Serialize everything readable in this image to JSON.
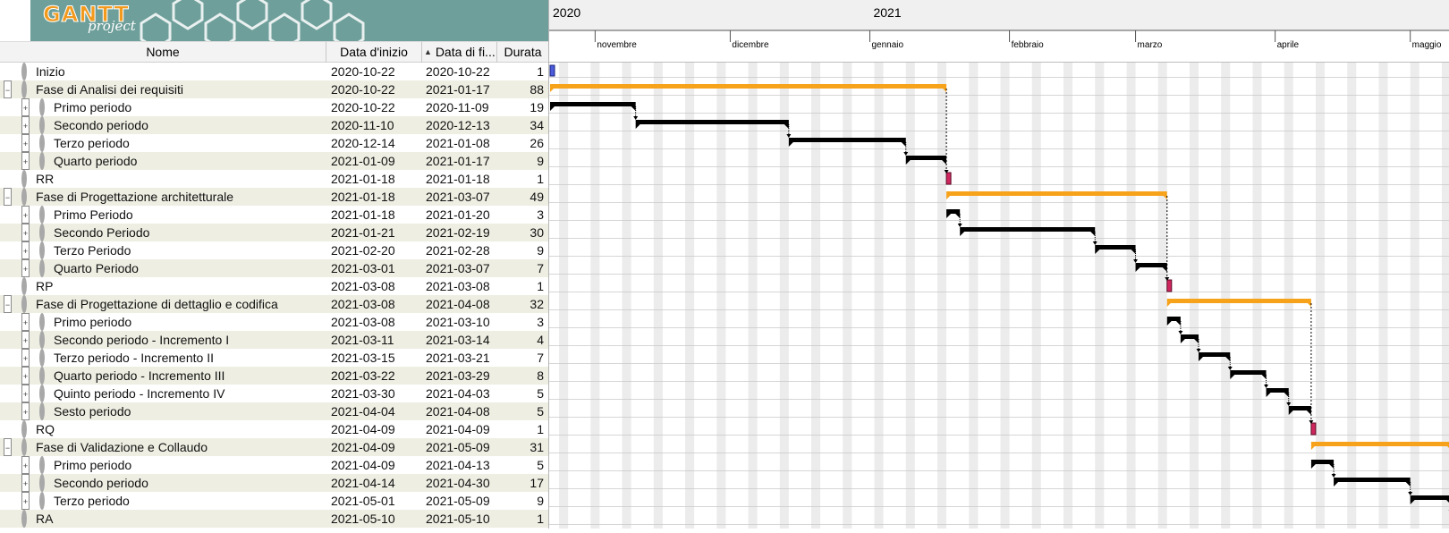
{
  "app": {
    "logo_main": "GANTT",
    "logo_sub": "project"
  },
  "columns": {
    "name": "Nome",
    "start": "Data d'inizio",
    "end": "Data di fi...",
    "duration": "Durata"
  },
  "colors": {
    "summary_bar": "#f7a21b",
    "task_bar": "#000000",
    "milestone": "#d0265e",
    "start_marker": "#4b5bd9",
    "weekend_shade": "#ececec",
    "row_alt": "#eeeee3",
    "logo_bg": "#6e9f9a",
    "logo_orange": "#f29a1e"
  },
  "timeline": {
    "years": [
      "2020",
      "2021"
    ],
    "months": [
      "novembre",
      "dicembre",
      "gennaio",
      "febbraio",
      "marzo",
      "aprile",
      "maggio"
    ]
  },
  "tasks": [
    {
      "name": "Inizio",
      "start": "2020-10-22",
      "end": "2020-10-22",
      "duration": "1",
      "level": 0,
      "expander": "",
      "type": "start"
    },
    {
      "name": "Fase di Analisi dei requisiti",
      "start": "2020-10-22",
      "end": "2021-01-17",
      "duration": "88",
      "level": 0,
      "expander": "−",
      "type": "summary"
    },
    {
      "name": "Primo periodo",
      "start": "2020-10-22",
      "end": "2020-11-09",
      "duration": "19",
      "level": 1,
      "expander": "+",
      "type": "task"
    },
    {
      "name": "Secondo periodo",
      "start": "2020-11-10",
      "end": "2020-12-13",
      "duration": "34",
      "level": 1,
      "expander": "+",
      "type": "task"
    },
    {
      "name": "Terzo periodo",
      "start": "2020-12-14",
      "end": "2021-01-08",
      "duration": "26",
      "level": 1,
      "expander": "+",
      "type": "task"
    },
    {
      "name": "Quarto periodo",
      "start": "2021-01-09",
      "end": "2021-01-17",
      "duration": "9",
      "level": 1,
      "expander": "+",
      "type": "task"
    },
    {
      "name": "RR",
      "start": "2021-01-18",
      "end": "2021-01-18",
      "duration": "1",
      "level": 0,
      "expander": "",
      "type": "milestone"
    },
    {
      "name": "Fase di Progettazione architetturale",
      "start": "2021-01-18",
      "end": "2021-03-07",
      "duration": "49",
      "level": 0,
      "expander": "−",
      "type": "summary"
    },
    {
      "name": "Primo Periodo",
      "start": "2021-01-18",
      "end": "2021-01-20",
      "duration": "3",
      "level": 1,
      "expander": "+",
      "type": "task"
    },
    {
      "name": "Secondo Periodo",
      "start": "2021-01-21",
      "end": "2021-02-19",
      "duration": "30",
      "level": 1,
      "expander": "+",
      "type": "task"
    },
    {
      "name": "Terzo Periodo",
      "start": "2021-02-20",
      "end": "2021-02-28",
      "duration": "9",
      "level": 1,
      "expander": "+",
      "type": "task"
    },
    {
      "name": "Quarto Periodo",
      "start": "2021-03-01",
      "end": "2021-03-07",
      "duration": "7",
      "level": 1,
      "expander": "+",
      "type": "task"
    },
    {
      "name": "RP",
      "start": "2021-03-08",
      "end": "2021-03-08",
      "duration": "1",
      "level": 0,
      "expander": "",
      "type": "milestone"
    },
    {
      "name": "Fase di Progettazione di dettaglio e codifica",
      "start": "2021-03-08",
      "end": "2021-04-08",
      "duration": "32",
      "level": 0,
      "expander": "−",
      "type": "summary"
    },
    {
      "name": "Primo periodo",
      "start": "2021-03-08",
      "end": "2021-03-10",
      "duration": "3",
      "level": 1,
      "expander": "+",
      "type": "task"
    },
    {
      "name": "Secondo periodo - Incremento I",
      "start": "2021-03-11",
      "end": "2021-03-14",
      "duration": "4",
      "level": 1,
      "expander": "+",
      "type": "task"
    },
    {
      "name": "Terzo periodo - Incremento II",
      "start": "2021-03-15",
      "end": "2021-03-21",
      "duration": "7",
      "level": 1,
      "expander": "+",
      "type": "task"
    },
    {
      "name": "Quarto periodo - Incremento III",
      "start": "2021-03-22",
      "end": "2021-03-29",
      "duration": "8",
      "level": 1,
      "expander": "+",
      "type": "task"
    },
    {
      "name": "Quinto periodo - Incremento IV",
      "start": "2021-03-30",
      "end": "2021-04-03",
      "duration": "5",
      "level": 1,
      "expander": "+",
      "type": "task"
    },
    {
      "name": "Sesto periodo",
      "start": "2021-04-04",
      "end": "2021-04-08",
      "duration": "5",
      "level": 1,
      "expander": "+",
      "type": "task"
    },
    {
      "name": "RQ",
      "start": "2021-04-09",
      "end": "2021-04-09",
      "duration": "1",
      "level": 0,
      "expander": "",
      "type": "milestone"
    },
    {
      "name": "Fase di Validazione e Collaudo",
      "start": "2021-04-09",
      "end": "2021-05-09",
      "duration": "31",
      "level": 0,
      "expander": "−",
      "type": "summary"
    },
    {
      "name": "Primo periodo",
      "start": "2021-04-09",
      "end": "2021-04-13",
      "duration": "5",
      "level": 1,
      "expander": "+",
      "type": "task"
    },
    {
      "name": "Secondo periodo",
      "start": "2021-04-14",
      "end": "2021-04-30",
      "duration": "17",
      "level": 1,
      "expander": "+",
      "type": "task"
    },
    {
      "name": "Terzo periodo",
      "start": "2021-05-01",
      "end": "2021-05-09",
      "duration": "9",
      "level": 1,
      "expander": "+",
      "type": "task"
    },
    {
      "name": "RA",
      "start": "2021-05-10",
      "end": "2021-05-10",
      "duration": "1",
      "level": 0,
      "expander": "",
      "type": "milestone"
    }
  ]
}
